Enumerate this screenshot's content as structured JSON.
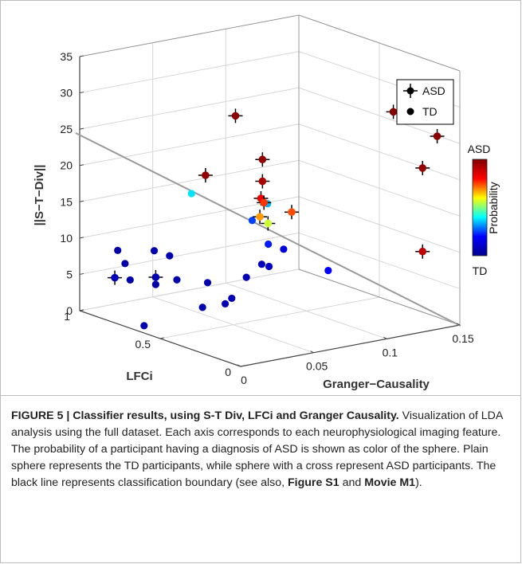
{
  "chart_data": {
    "type": "scatter",
    "title": "",
    "axes": {
      "x": {
        "label": "Granger−Causality",
        "range": [
          0,
          0.15
        ],
        "ticks": [
          "0",
          "0.05",
          "0.1",
          "0.15"
        ]
      },
      "y": {
        "label": "LFCi",
        "range": [
          0,
          1
        ],
        "ticks": [
          "0",
          "0.5",
          "1"
        ]
      },
      "z": {
        "label": "||S−T−Div||",
        "range": [
          0,
          35
        ],
        "ticks": [
          "0",
          "5",
          "10",
          "15",
          "20",
          "25",
          "30",
          "35"
        ]
      }
    },
    "grid": true,
    "legend": {
      "placement": "top-right",
      "entries": [
        "ASD",
        "TD"
      ]
    },
    "colorbar": {
      "label": "Probability",
      "top": "ASD",
      "bottom": "TD"
    },
    "series": [
      {
        "name": "ASD",
        "marker": "sphere with cross",
        "points": [
          {
            "x": 0.002,
            "y": 0.8,
            "z": 6.0,
            "p": 0.08
          },
          {
            "x": 0.03,
            "y": 0.8,
            "z": 5.0,
            "p": 0.06
          },
          {
            "x": 0.02,
            "y": 0.4,
            "z": 22.5,
            "p": 0.97
          },
          {
            "x": 0.035,
            "y": 0.35,
            "z": 30.5,
            "p": 0.98
          },
          {
            "x": 0.07,
            "y": 0.5,
            "z": 22.0,
            "p": 0.97
          },
          {
            "x": 0.06,
            "y": 0.4,
            "z": 17.2,
            "p": 0.76
          },
          {
            "x": 0.055,
            "y": 0.38,
            "z": 15.6,
            "p": 0.68
          },
          {
            "x": 0.065,
            "y": 0.42,
            "z": 14.0,
            "p": 0.56
          },
          {
            "x": 0.07,
            "y": 0.5,
            "z": 19.0,
            "p": 0.93
          },
          {
            "x": 0.08,
            "y": 0.6,
            "z": 15.5,
            "p": 0.83
          },
          {
            "x": 0.09,
            "y": 0.5,
            "z": 14.0,
            "p": 0.74
          },
          {
            "x": 0.11,
            "y": 0.05,
            "z": 30.5,
            "p": 0.99
          },
          {
            "x": 0.14,
            "y": 0.05,
            "z": 26.0,
            "p": 0.98
          },
          {
            "x": 0.13,
            "y": 0.05,
            "z": 22.0,
            "p": 0.96
          },
          {
            "x": 0.13,
            "y": 0.05,
            "z": 10.5,
            "p": 0.9
          }
        ]
      },
      {
        "name": "TD",
        "marker": "sphere",
        "points": [
          {
            "x": 0.0,
            "y": 0.6,
            "z": 1.0,
            "p": 0.06
          },
          {
            "x": 0.015,
            "y": 0.9,
            "z": 8.5,
            "p": 0.05
          },
          {
            "x": 0.02,
            "y": 0.9,
            "z": 6.5,
            "p": 0.05
          },
          {
            "x": 0.018,
            "y": 0.85,
            "z": 4.7,
            "p": 0.05
          },
          {
            "x": 0.03,
            "y": 0.8,
            "z": 4.0,
            "p": 0.05
          },
          {
            "x": 0.04,
            "y": 0.9,
            "z": 7.5,
            "p": 0.06
          },
          {
            "x": 0.045,
            "y": 0.85,
            "z": 7.0,
            "p": 0.06
          },
          {
            "x": 0.05,
            "y": 0.85,
            "z": 3.5,
            "p": 0.05
          },
          {
            "x": 0.04,
            "y": 0.6,
            "z": 2.0,
            "p": 0.06
          },
          {
            "x": 0.05,
            "y": 0.55,
            "z": 2.5,
            "p": 0.06
          },
          {
            "x": 0.06,
            "y": 0.6,
            "z": 2.5,
            "p": 0.07
          },
          {
            "x": 0.06,
            "y": 0.75,
            "z": 3.5,
            "p": 0.06
          },
          {
            "x": 0.07,
            "y": 0.6,
            "z": 5.0,
            "p": 0.07
          },
          {
            "x": 0.075,
            "y": 0.55,
            "z": 7.0,
            "p": 0.08
          },
          {
            "x": 0.08,
            "y": 0.55,
            "z": 6.5,
            "p": 0.1
          },
          {
            "x": 0.09,
            "y": 0.55,
            "z": 8.5,
            "p": 0.14
          },
          {
            "x": 0.085,
            "y": 0.6,
            "z": 9.0,
            "p": 0.22
          },
          {
            "x": 0.06,
            "y": 0.85,
            "z": 15.0,
            "p": 0.38
          },
          {
            "x": 0.085,
            "y": 0.7,
            "z": 11.5,
            "p": 0.25
          },
          {
            "x": 0.09,
            "y": 0.65,
            "z": 14.0,
            "p": 0.34
          },
          {
            "x": 0.115,
            "y": 0.5,
            "z": 5.0,
            "p": 0.2
          }
        ]
      }
    ]
  },
  "colors": {
    "asd_marker": "#000000",
    "td_marker": "#000000",
    "boundary_line": "#9a9a9a",
    "axis_line": "#444444",
    "grid": "#d6d6d6",
    "colormap": [
      "#00008f",
      "#0000ff",
      "#00ffff",
      "#ffff00",
      "#ff0000",
      "#800000"
    ]
  },
  "caption": {
    "figure_label": "FIGURE 5 | Classifier results, using S-T Div, LFCi and Granger Causality.",
    "text_1": " Visualization of LDA analysis using the full dataset. Each axis corresponds to each neurophysiological imaging feature. The probability of a participant having a diagnosis of ASD is shown as color of the sphere. Plain sphere represents the TD participants, while sphere with a cross represent ASD participants. The black line represents classification boundary (see also, ",
    "ref_1": "Figure S1",
    "text_2": " and ",
    "ref_2": "Movie M1",
    "text_3": ")."
  }
}
